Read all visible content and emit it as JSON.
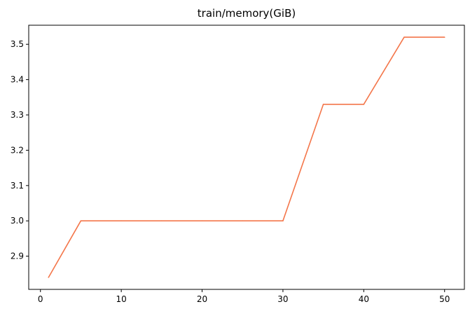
{
  "chart_data": {
    "type": "line",
    "title": "train/memory(GiB)",
    "xlabel": "",
    "ylabel": "",
    "xlim": [
      -1.45,
      52.45
    ],
    "ylim": [
      2.806,
      3.554
    ],
    "xticks": [
      0,
      10,
      20,
      30,
      40,
      50
    ],
    "xtick_labels": [
      "0",
      "10",
      "20",
      "30",
      "40",
      "50"
    ],
    "yticks": [
      2.9,
      3.0,
      3.1,
      3.2,
      3.3,
      3.4,
      3.5
    ],
    "ytick_labels": [
      "2.9",
      "3.0",
      "3.1",
      "3.2",
      "3.3",
      "3.4",
      "3.5"
    ],
    "grid": false,
    "series": [
      {
        "color": "#f4764a",
        "x": [
          1,
          5,
          10,
          15,
          20,
          25,
          30,
          35,
          40,
          45,
          50
        ],
        "y": [
          2.84,
          3.0,
          3.0,
          3.0,
          3.0,
          3.0,
          3.0,
          3.33,
          3.33,
          3.52,
          3.52
        ]
      }
    ]
  }
}
